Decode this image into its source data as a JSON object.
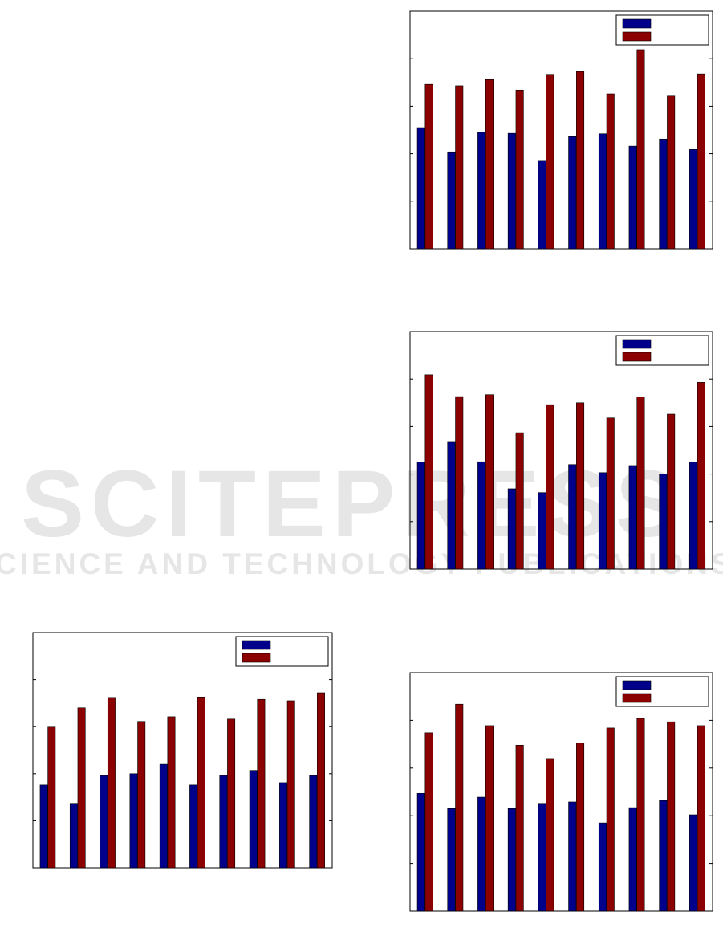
{
  "watermark": {
    "title": "SCITEPRESS",
    "subtitle": "SCIENCE AND TECHNOLOGY PUBLICATIONS"
  },
  "chart_data": [
    {
      "type": "bar",
      "categories": [
        null,
        null,
        null,
        null,
        null,
        null,
        null,
        null,
        null,
        null
      ],
      "series": [
        {
          "color": "#00008b",
          "values": [
            2.55,
            2.04,
            2.45,
            2.43,
            1.86,
            2.36,
            2.42,
            2.16,
            2.31,
            2.09
          ]
        },
        {
          "color": "#8b0000",
          "values": [
            3.46,
            3.43,
            3.56,
            3.34,
            3.67,
            3.73,
            3.26,
            4.19,
            3.23,
            3.68
          ]
        }
      ],
      "ylim": [
        0,
        5
      ],
      "yticks": [
        0,
        1,
        2,
        3,
        4,
        5
      ],
      "legend": "upper right"
    },
    {
      "type": "bar",
      "categories": [
        null,
        null,
        null,
        null,
        null,
        null,
        null,
        null,
        null,
        null
      ],
      "series": [
        {
          "color": "#00008b",
          "values": [
            2.25,
            2.67,
            2.26,
            1.69,
            1.61,
            2.2,
            2.03,
            2.18,
            2.0,
            2.25
          ]
        },
        {
          "color": "#8b0000",
          "values": [
            4.09,
            3.63,
            3.67,
            2.87,
            3.46,
            3.5,
            3.18,
            3.62,
            3.26,
            3.93
          ]
        }
      ],
      "ylim": [
        0,
        5
      ],
      "yticks": [
        0,
        1,
        2,
        3,
        4,
        5
      ],
      "legend": "upper right"
    },
    {
      "type": "bar",
      "categories": [
        null,
        null,
        null,
        null,
        null,
        null,
        null,
        null,
        null,
        null
      ],
      "series": [
        {
          "color": "#00008b",
          "values": [
            1.76,
            1.37,
            1.96,
            2.0,
            2.2,
            1.76,
            1.96,
            2.07,
            1.81,
            1.96
          ]
        },
        {
          "color": "#8b0000",
          "values": [
            2.99,
            3.4,
            3.62,
            3.11,
            3.21,
            3.63,
            3.16,
            3.58,
            3.55,
            3.72
          ]
        }
      ],
      "ylim": [
        0,
        5
      ],
      "yticks": [
        0,
        1,
        2,
        3,
        4,
        5
      ],
      "legend": "upper right"
    },
    {
      "type": "bar",
      "categories": [
        null,
        null,
        null,
        null,
        null,
        null,
        null,
        null,
        null,
        null
      ],
      "series": [
        {
          "color": "#00008b",
          "values": [
            2.47,
            2.15,
            2.39,
            2.15,
            2.26,
            2.29,
            1.85,
            2.17,
            2.32,
            2.02
          ]
        },
        {
          "color": "#8b0000",
          "values": [
            3.74,
            4.34,
            3.89,
            3.48,
            3.2,
            3.53,
            3.84,
            4.04,
            3.97,
            3.89
          ]
        }
      ],
      "ylim": [
        0,
        5
      ],
      "yticks": [
        0,
        1,
        2,
        3,
        4,
        5
      ],
      "legend": "upper right"
    }
  ]
}
